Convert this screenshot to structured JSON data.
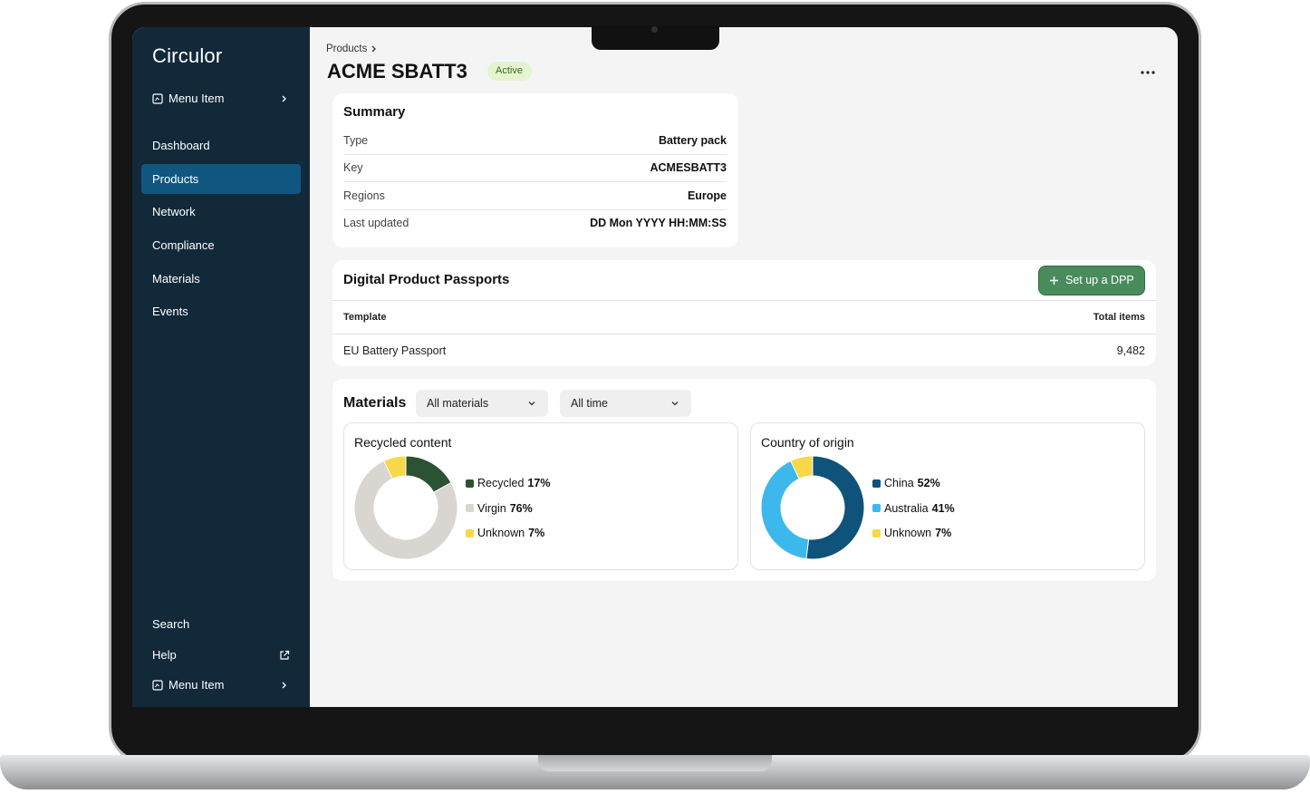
{
  "sidebar": {
    "logo": "Circulor",
    "top_item": "Menu Item",
    "nav": [
      "Dashboard",
      "Products",
      "Network",
      "Compliance",
      "Materials",
      "Events"
    ],
    "bottom": [
      "Search",
      "Help",
      "Menu Item"
    ]
  },
  "header": {
    "breadcrumb": "Products",
    "title": "ACME SBATT3",
    "status": "Active"
  },
  "summary": {
    "title": "Summary",
    "rows": [
      [
        "Type",
        "Battery pack"
      ],
      [
        "Key",
        "ACMESBATT3"
      ],
      [
        "Regions",
        "Europe"
      ],
      [
        "Last updated",
        "DD Mon YYYY HH:MM:SS"
      ]
    ]
  },
  "dpp": {
    "title": "Digital Product Passports",
    "button": "Set up a DPP",
    "columns": [
      "Template",
      "Total items"
    ],
    "rows": [
      [
        "EU Battery Passport",
        "9,482"
      ]
    ]
  },
  "materials": {
    "title": "Materials",
    "filters": [
      "All materials",
      "All time"
    ],
    "charts": [
      {
        "type": "pie",
        "title": "Recycled content",
        "categories": [
          "Recycled",
          "Virgin",
          "Unknown"
        ],
        "values": [
          17,
          76,
          7
        ],
        "value_labels": [
          "17%",
          "76%",
          "7%"
        ],
        "colors": [
          "#2b5233",
          "#d9d6d2",
          "#f7d84a"
        ]
      },
      {
        "type": "pie",
        "title": "Country of origin",
        "categories": [
          "China",
          "Australia",
          "Unknown"
        ],
        "values": [
          52,
          41,
          7
        ],
        "value_labels": [
          "52%",
          "41%",
          "7%"
        ],
        "colors": [
          "#0f527a",
          "#3db8ec",
          "#f7d84a"
        ]
      }
    ]
  }
}
